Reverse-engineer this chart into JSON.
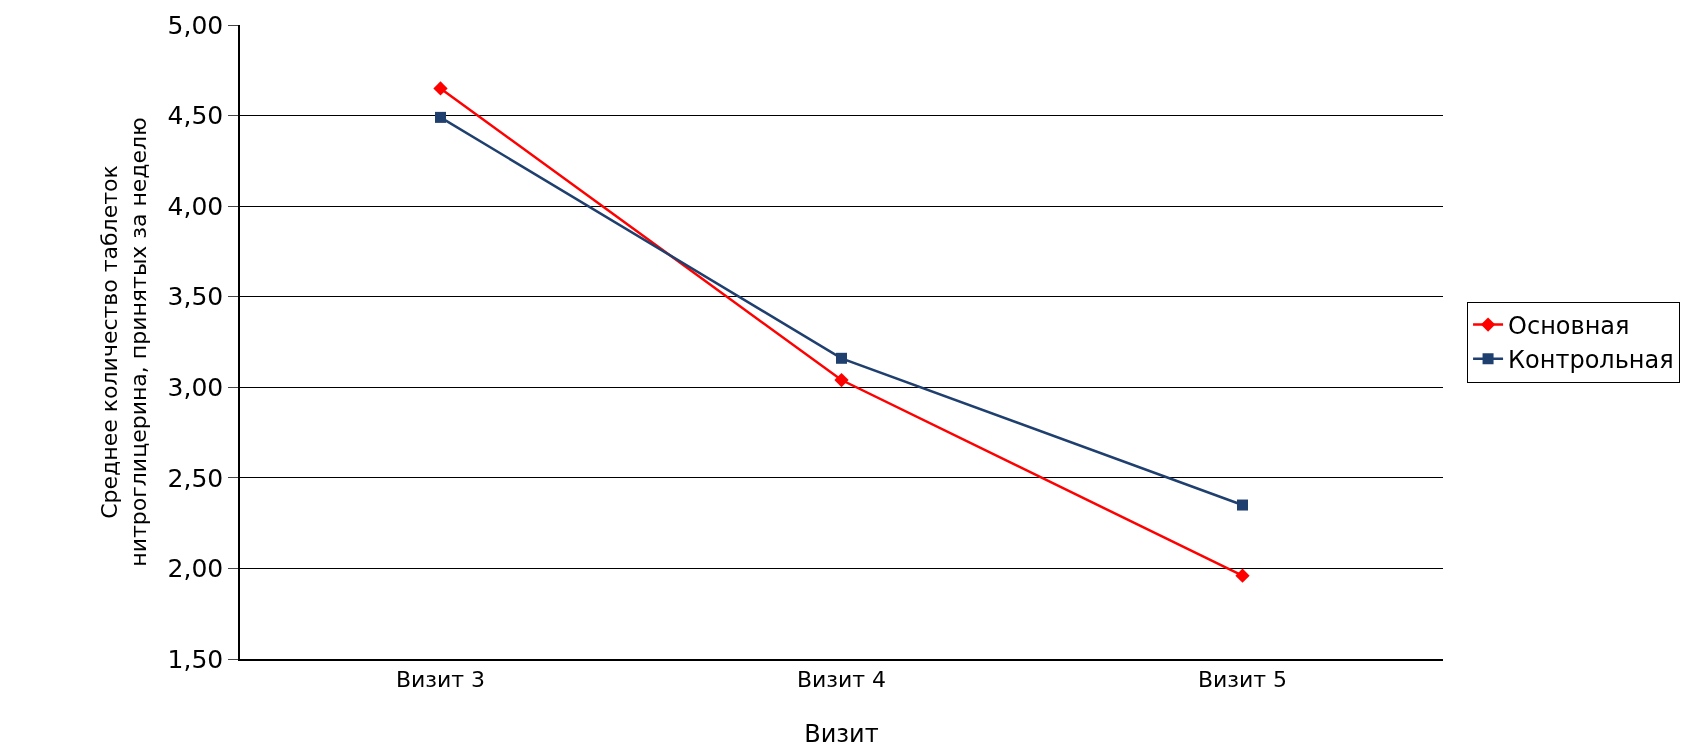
{
  "chart_data": {
    "type": "line",
    "xlabel": "Визит",
    "ylabel": "Среднее количество таблеток нитроглицерина, принятых за неделю",
    "categories": [
      "Визит 3",
      "Визит 4",
      "Визит 5"
    ],
    "series": [
      {
        "name": "Основная",
        "color": "#ff0000",
        "marker": "diamond",
        "values": [
          4.65,
          3.04,
          1.96
        ]
      },
      {
        "name": "Контрольная",
        "color": "#1f3f6f",
        "marker": "square",
        "values": [
          4.49,
          3.16,
          2.35
        ]
      }
    ],
    "ylim": [
      1.5,
      5
    ],
    "yticks": [
      {
        "value": 1.5,
        "label": "1,50"
      },
      {
        "value": 2,
        "label": "2,00"
      },
      {
        "value": 2.5,
        "label": "2,50"
      },
      {
        "value": 3,
        "label": "3,00"
      },
      {
        "value": 3.5,
        "label": "3,50"
      },
      {
        "value": 4,
        "label": "4,00"
      },
      {
        "value": 4.5,
        "label": "4,50"
      },
      {
        "value": 5,
        "label": "5,00"
      }
    ],
    "grid": "y",
    "legend": "right",
    "line_style": "solid"
  }
}
